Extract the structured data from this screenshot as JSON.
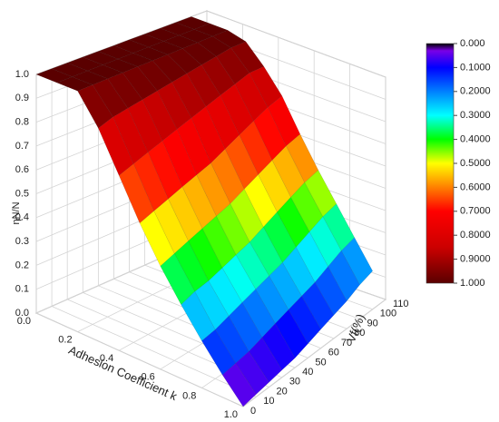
{
  "chart_data": {
    "type": "surface",
    "x_label": "Adhesion Coefficient k",
    "y_label": "Vf(%)",
    "z_label": "ηN/N",
    "x": [
      0,
      0.1,
      0.2,
      0.3,
      0.4,
      0.5,
      0.6,
      0.7,
      0.8,
      0.9,
      1
    ],
    "y": [
      0,
      10,
      20,
      30,
      40,
      50,
      60,
      70,
      80,
      90,
      100
    ],
    "z": [
      [
        1,
        1,
        1,
        1,
        1,
        1,
        1,
        1,
        1,
        1,
        1
      ],
      [
        1,
        1,
        1,
        1,
        1,
        1,
        1,
        1,
        1,
        1,
        1
      ],
      [
        1,
        1,
        1,
        1,
        1,
        1,
        1,
        1,
        1,
        1,
        1
      ],
      [
        0.88,
        0.9,
        0.91,
        0.92,
        0.93,
        0.94,
        0.95,
        0.96,
        0.97,
        0.98,
        0.98
      ],
      [
        0.72,
        0.74,
        0.76,
        0.78,
        0.8,
        0.82,
        0.84,
        0.86,
        0.88,
        0.9,
        0.9
      ],
      [
        0.56,
        0.58,
        0.6,
        0.62,
        0.64,
        0.66,
        0.69,
        0.72,
        0.75,
        0.78,
        0.8
      ],
      [
        0.42,
        0.44,
        0.46,
        0.48,
        0.5,
        0.52,
        0.55,
        0.58,
        0.61,
        0.64,
        0.66
      ],
      [
        0.3,
        0.32,
        0.33,
        0.35,
        0.37,
        0.39,
        0.42,
        0.45,
        0.48,
        0.51,
        0.53
      ],
      [
        0.19,
        0.2,
        0.22,
        0.24,
        0.26,
        0.28,
        0.3,
        0.33,
        0.36,
        0.39,
        0.41
      ],
      [
        0.09,
        0.1,
        0.11,
        0.13,
        0.15,
        0.17,
        0.19,
        0.21,
        0.24,
        0.27,
        0.29
      ],
      [
        0,
        0.01,
        0.02,
        0.03,
        0.04,
        0.06,
        0.08,
        0.1,
        0.12,
        0.15,
        0.17
      ]
    ],
    "xlim": [
      0,
      1
    ],
    "xticks": [
      {
        "value": 0,
        "label": "0.0"
      },
      0.2,
      0.4,
      0.6,
      0.8,
      {
        "value": 1,
        "label": "1.0"
      }
    ],
    "ylim": [
      0,
      110
    ],
    "yticks": [
      0,
      10,
      20,
      30,
      40,
      50,
      60,
      70,
      80,
      90,
      100,
      110
    ],
    "zlim": [
      0,
      1
    ],
    "zticks": [
      {
        "value": 0,
        "label": "0.0"
      },
      0.1,
      0.2,
      0.3,
      0.4,
      0.5,
      0.6,
      0.7,
      0.8,
      0.9,
      {
        "value": 1,
        "label": "1.0"
      }
    ],
    "colorbar_ticks": [
      {
        "value": 0,
        "label": "0.000"
      },
      {
        "value": 0.1,
        "label": "0.1000"
      },
      {
        "value": 0.2,
        "label": "0.2000"
      },
      {
        "value": 0.3,
        "label": "0.3000"
      },
      {
        "value": 0.4,
        "label": "0.4000"
      },
      {
        "value": 0.5,
        "label": "0.5000"
      },
      {
        "value": 0.6,
        "label": "0.6000"
      },
      {
        "value": 0.7,
        "label": "0.7000"
      },
      {
        "value": 0.8,
        "label": "0.8000"
      },
      {
        "value": 0.9,
        "label": "0.9000"
      },
      {
        "value": 1,
        "label": "1.000"
      }
    ],
    "colormap": [
      {
        "value": 0,
        "color": "#000000"
      },
      {
        "value": 0.03,
        "color": "#7a00e6"
      },
      {
        "value": 0.1,
        "color": "#0000ff"
      },
      {
        "value": 0.3,
        "color": "#00ffff"
      },
      {
        "value": 0.4,
        "color": "#00ff00"
      },
      {
        "value": 0.5,
        "color": "#ffff00"
      },
      {
        "value": 0.6,
        "color": "#ff8000"
      },
      {
        "value": 0.7,
        "color": "#ff0000"
      },
      {
        "value": 0.85,
        "color": "#cc0000"
      },
      {
        "value": 1,
        "color": "#5a0000"
      }
    ],
    "grid": true
  }
}
